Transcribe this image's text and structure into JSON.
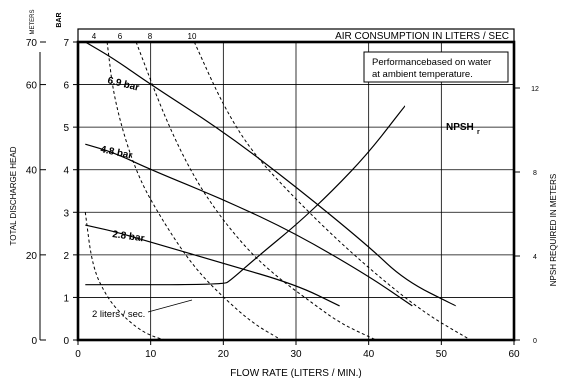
{
  "chart_data": {
    "type": "line",
    "xlabel": "FLOW RATE (LITERS / MIN.)",
    "xlim": [
      0,
      60
    ],
    "x_ticks": [
      "0",
      "10",
      "20",
      "30",
      "40",
      "50",
      "60"
    ],
    "y_bar_label": "BAR",
    "y_bar_ticks": [
      "0",
      "1",
      "2",
      "3",
      "4",
      "5",
      "6",
      "7"
    ],
    "y_meters_units": "METERS",
    "y_meters_ticks": [
      "0",
      "20",
      "40",
      "60",
      "70"
    ],
    "ylabel": "TOTAL DISCHARGE HEAD",
    "y2label": "NPSH REQUIRED IN METERS",
    "y2_ticks": [
      "0",
      "4",
      "8",
      "12"
    ],
    "top_axis_label": "AIR CONSUMPTION IN LITERS / SEC",
    "top_ticks": [
      "4",
      "6",
      "8",
      "10"
    ],
    "note": [
      "Performancebased on water",
      "at ambient temperature."
    ],
    "series": [
      {
        "name": "6.9 bar",
        "style": "solid",
        "x": [
          1,
          5,
          10,
          20,
          30,
          40,
          45,
          52
        ],
        "y": [
          7.0,
          6.6,
          6.0,
          4.9,
          3.6,
          2.2,
          1.4,
          0.8
        ]
      },
      {
        "name": "4.8 bar",
        "style": "solid",
        "x": [
          1,
          5,
          10,
          20,
          30,
          40,
          46
        ],
        "y": [
          4.6,
          4.4,
          4.0,
          3.3,
          2.5,
          1.5,
          0.8
        ]
      },
      {
        "name": "2.8 bar",
        "style": "solid",
        "x": [
          1,
          5,
          10,
          20,
          30,
          36
        ],
        "y": [
          2.7,
          2.55,
          2.3,
          1.8,
          1.3,
          0.8
        ]
      },
      {
        "name": "NPSHr",
        "style": "solid",
        "x": [
          1,
          20,
          21,
          25,
          30,
          35,
          40,
          45
        ],
        "y": [
          1.3,
          1.3,
          1.4,
          2.0,
          2.7,
          3.5,
          4.4,
          5.5
        ]
      },
      {
        "style": "dashed",
        "x": [
          1,
          2,
          4,
          6,
          8,
          10,
          12
        ],
        "y": [
          3.0,
          1.7,
          1.0,
          0.6,
          0.3,
          0.1,
          0.0
        ]
      },
      {
        "style": "dashed",
        "x": [
          4,
          5,
          8,
          12,
          16,
          20,
          24,
          28
        ],
        "y": [
          7.0,
          5.6,
          3.9,
          2.7,
          1.7,
          1.0,
          0.4,
          0.0
        ]
      },
      {
        "style": "dashed",
        "x": [
          8,
          12,
          16,
          20,
          24,
          28,
          32,
          36,
          41
        ],
        "y": [
          7.0,
          5.2,
          3.8,
          2.8,
          2.0,
          1.4,
          0.9,
          0.4,
          0.0
        ]
      },
      {
        "style": "dashed",
        "x": [
          16,
          20,
          24,
          30,
          36,
          42,
          48,
          54
        ],
        "y": [
          7.0,
          5.5,
          4.4,
          3.3,
          2.3,
          1.4,
          0.6,
          0.0
        ]
      }
    ],
    "annotations": [
      "6.9 bar",
      "4.8 bar",
      "2.8 bar",
      "NPSH",
      "r",
      "2 liters / sec."
    ],
    "grid": true
  }
}
